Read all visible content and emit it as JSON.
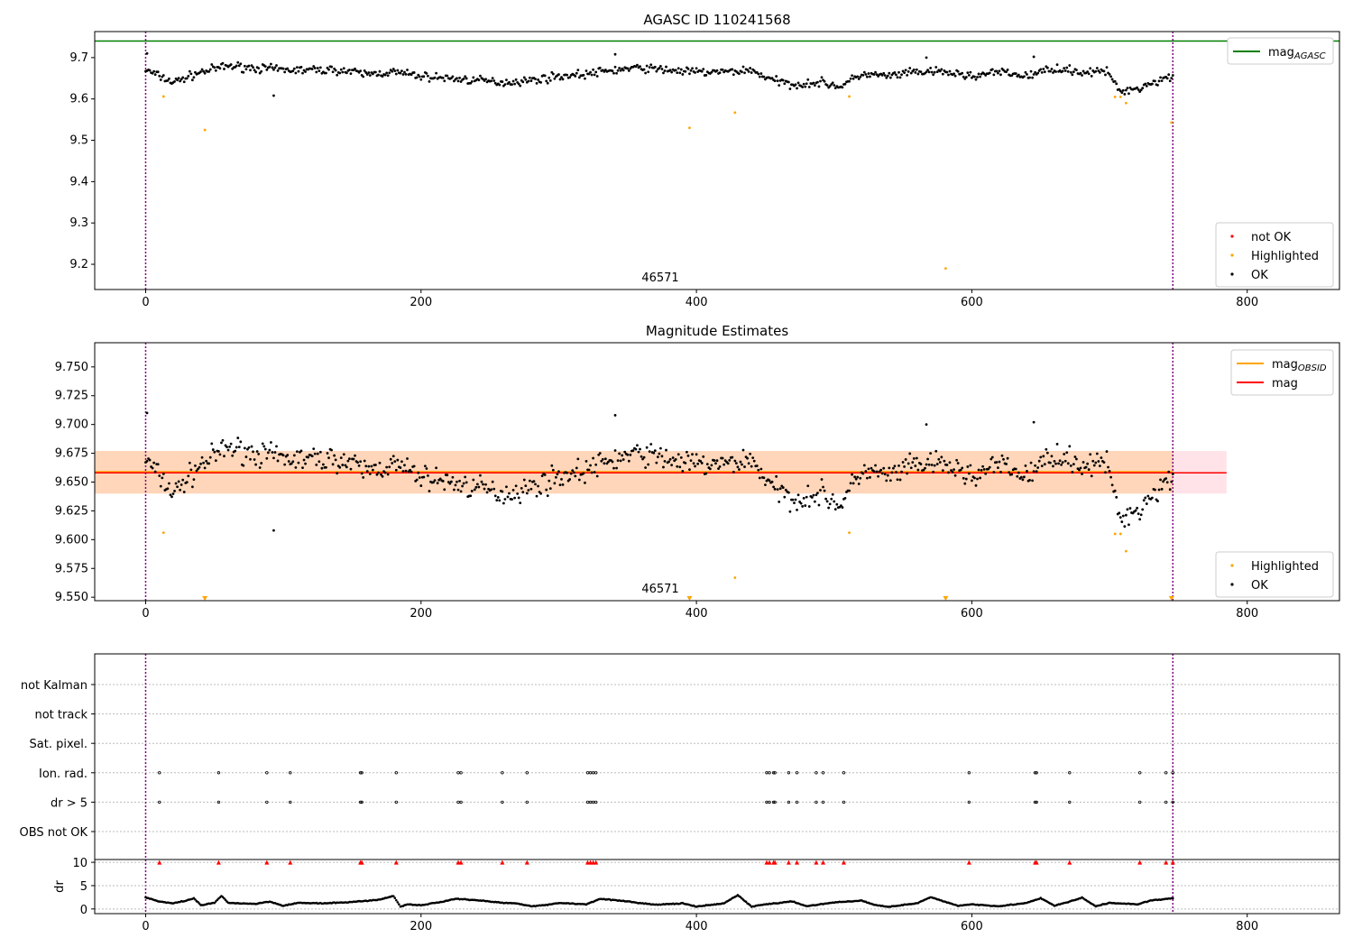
{
  "chart_data": [
    {
      "type": "scatter",
      "title": "AGASC ID 110241568",
      "xlim": [
        -37,
        867
      ],
      "ylim": [
        9.139,
        9.763
      ],
      "yticks": [
        9.2,
        9.3,
        9.4,
        9.5,
        9.6,
        9.7
      ],
      "xticks": [
        0,
        200,
        400,
        600,
        800
      ],
      "annotation": "46571",
      "obs_bounds": [
        0,
        746
      ],
      "mag_agasc": 9.74,
      "legend_lines": [
        {
          "label": "mag",
          "sub": "AGASC",
          "color": "#008000"
        }
      ],
      "legend_points": [
        {
          "label": "not OK",
          "color": "#ff0000"
        },
        {
          "label": "Highlighted",
          "color": "#ffa500"
        },
        {
          "label": "OK",
          "color": "#000000"
        }
      ]
    },
    {
      "type": "scatter",
      "title": "Magnitude Estimates",
      "xlim": [
        -37,
        867
      ],
      "ylim": [
        9.547,
        9.771
      ],
      "yticks": [
        9.55,
        9.575,
        9.6,
        9.625,
        9.65,
        9.675,
        9.7,
        9.725,
        9.75
      ],
      "xticks": [
        0,
        200,
        400,
        600,
        800
      ],
      "annotation": "46571",
      "mag": 9.658,
      "mag_obsid": 9.658,
      "band": [
        9.64,
        9.677
      ],
      "legend_lines": [
        {
          "label": "mag",
          "sub": "OBSID",
          "color": "#ffa500"
        },
        {
          "label": "mag",
          "sub": "",
          "color": "#ff0000"
        }
      ],
      "legend_points": [
        {
          "label": "Highlighted",
          "color": "#ffa500"
        },
        {
          "label": "OK",
          "color": "#000000"
        }
      ]
    },
    {
      "type": "scatter",
      "categories": [
        "not Kalman",
        "not track",
        "Sat. pixel.",
        "Ion. rad.",
        "dr > 5",
        "OBS not OK"
      ],
      "flag_x": [
        10,
        53,
        88,
        105,
        156,
        157,
        182,
        227,
        229,
        259,
        277,
        321,
        323,
        325,
        327,
        451,
        453,
        456,
        457,
        467,
        473,
        487,
        492,
        507,
        598,
        646,
        647,
        671,
        722,
        741,
        746
      ],
      "flagged_categories": [
        "Ion. rad.",
        "dr > 5"
      ],
      "dr_ylabel": "dr",
      "dr_yticks": [
        0,
        5,
        10
      ],
      "dr_ylim": [
        -1,
        10.6
      ],
      "xticks": [
        0,
        200,
        400,
        600,
        800
      ],
      "dr_trend_x": [
        0,
        10,
        20,
        30,
        35,
        40,
        50,
        55,
        60,
        80,
        90,
        100,
        110,
        130,
        150,
        170,
        180,
        185,
        190,
        200,
        220,
        225,
        240,
        260,
        270,
        280,
        290,
        300,
        320,
        330,
        350,
        370,
        390,
        400,
        420,
        430,
        440,
        450,
        470,
        480,
        500,
        520,
        530,
        540,
        560,
        570,
        590,
        600,
        620,
        640,
        650,
        660,
        670,
        680,
        690,
        700,
        720,
        730,
        746
      ],
      "dr_trend": [
        2.5,
        1.6,
        1.2,
        1.8,
        2.3,
        0.8,
        1.3,
        2.8,
        1.3,
        1.1,
        1.6,
        0.7,
        1.3,
        1.2,
        1.5,
        2.0,
        2.8,
        0.5,
        1.0,
        0.8,
        1.8,
        2.2,
        1.9,
        1.3,
        1.2,
        0.6,
        0.8,
        1.3,
        1.0,
        2.2,
        1.6,
        0.9,
        1.2,
        0.5,
        1.2,
        3.0,
        0.5,
        1.0,
        1.6,
        0.6,
        1.4,
        1.8,
        0.8,
        0.5,
        1.2,
        2.5,
        0.7,
        1.0,
        0.6,
        1.3,
        2.3,
        0.7,
        1.5,
        2.4,
        0.6,
        1.3,
        1.0,
        1.8,
        2.3
      ]
    },
    {
      "type": "scatter",
      "name": "magnitude_series",
      "trend_x": [
        0,
        20,
        40,
        60,
        80,
        100,
        120,
        140,
        160,
        180,
        200,
        220,
        240,
        260,
        280,
        300,
        320,
        340,
        360,
        380,
        400,
        420,
        440,
        455,
        470,
        490,
        505,
        520,
        540,
        560,
        580,
        600,
        620,
        640,
        660,
        680,
        700,
        706,
        720,
        740,
        746
      ],
      "trend": [
        9.67,
        9.64,
        9.665,
        9.68,
        9.675,
        9.67,
        9.67,
        9.67,
        9.66,
        9.665,
        9.655,
        9.65,
        9.645,
        9.64,
        9.645,
        9.655,
        9.66,
        9.67,
        9.675,
        9.67,
        9.665,
        9.665,
        9.67,
        9.645,
        9.635,
        9.64,
        9.63,
        9.66,
        9.655,
        9.665,
        9.665,
        9.655,
        9.665,
        9.655,
        9.675,
        9.665,
        9.665,
        9.62,
        9.625,
        9.65,
        9.655
      ],
      "scatter_amplitude": 0.015,
      "ok_outliers": [
        [
          1,
          9.71
        ],
        [
          93,
          9.608
        ],
        [
          341,
          9.708
        ],
        [
          645,
          9.702
        ],
        [
          567,
          9.7
        ]
      ],
      "highlighted": [
        [
          13,
          9.606
        ],
        [
          43,
          9.525
        ],
        [
          395,
          9.53
        ],
        [
          428,
          9.567
        ],
        [
          511,
          9.606
        ],
        [
          581,
          9.19
        ],
        [
          704,
          9.605
        ],
        [
          708,
          9.605
        ],
        [
          712,
          9.59
        ],
        [
          745,
          9.543
        ]
      ]
    }
  ]
}
